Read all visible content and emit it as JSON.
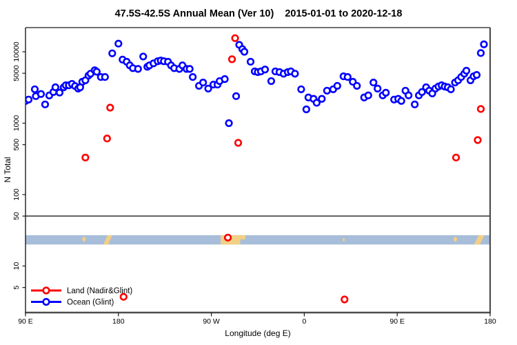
{
  "window": {
    "background": "#ffffff"
  },
  "chart_data": {
    "type": "scatter",
    "title": "47.5S-42.5S Annual Mean (Ver 10)",
    "subtitle": "2015-01-01 to 2020-12-18",
    "xlabel": "Longitude (deg E)",
    "ylabel": "N Total",
    "y_scale": "log",
    "x_range_deg": [
      90,
      540
    ],
    "y_range": [
      2.5,
      21000
    ],
    "grid": false,
    "reference_line_n": 50,
    "axis_colors": {
      "box": "#1a1a1a",
      "heavy": "#4d4d4d"
    },
    "y_ticks": [
      {
        "n": 10000,
        "label": "10000"
      },
      {
        "n": 5000,
        "label": "5000"
      },
      {
        "n": 1000,
        "label": "1000"
      },
      {
        "n": 500,
        "label": "500"
      },
      {
        "n": 100,
        "label": "100"
      },
      {
        "n": 50,
        "label": "50"
      },
      {
        "n": 10,
        "label": "10"
      },
      {
        "n": 5,
        "label": "5"
      }
    ],
    "x_ticks": [
      {
        "deg": 90,
        "label": "90 E"
      },
      {
        "deg": 180,
        "label": "180"
      },
      {
        "deg": 270,
        "label": "90 W"
      },
      {
        "deg": 360,
        "label": "0"
      },
      {
        "deg": 450,
        "label": "90 E"
      },
      {
        "deg": 540,
        "label": "180"
      }
    ],
    "legend": {
      "position": "bottom-left"
    },
    "series": [
      {
        "name": "Land (Nadir&Glint)",
        "color": "#ff0000",
        "points": [
          [
            148,
            330
          ],
          [
            169,
            610
          ],
          [
            172,
            1650
          ],
          [
            185,
            3.7
          ],
          [
            286,
            25
          ],
          [
            290,
            7850
          ],
          [
            293,
            15500
          ],
          [
            296,
            530
          ],
          [
            399,
            3.4
          ],
          [
            507,
            330
          ],
          [
            528,
            580
          ],
          [
            531,
            1580
          ]
        ]
      },
      {
        "name": "Ocean (Glint)",
        "color": "#0000ff",
        "points": [
          [
            90,
            2050
          ],
          [
            93,
            2140
          ],
          [
            99,
            2980
          ],
          [
            100,
            2390
          ],
          [
            105,
            2560
          ],
          [
            109,
            1830
          ],
          [
            113,
            2440
          ],
          [
            117,
            2730
          ],
          [
            119,
            3180
          ],
          [
            123,
            2680
          ],
          [
            127,
            3180
          ],
          [
            129,
            3390
          ],
          [
            132,
            3390
          ],
          [
            135,
            3550
          ],
          [
            138,
            3310
          ],
          [
            141,
            3050
          ],
          [
            143,
            3180
          ],
          [
            145,
            3800
          ],
          [
            148,
            3980
          ],
          [
            151,
            4640
          ],
          [
            153,
            4930
          ],
          [
            157,
            5500
          ],
          [
            159,
            5250
          ],
          [
            163,
            4430
          ],
          [
            167,
            4430
          ],
          [
            174,
            9500
          ],
          [
            180,
            13000
          ],
          [
            184,
            7760
          ],
          [
            188,
            7250
          ],
          [
            191,
            6440
          ],
          [
            194,
            5890
          ],
          [
            199,
            5750
          ],
          [
            204,
            8570
          ],
          [
            208,
            6160
          ],
          [
            210,
            6440
          ],
          [
            214,
            6880
          ],
          [
            218,
            7360
          ],
          [
            221,
            7530
          ],
          [
            224,
            7360
          ],
          [
            228,
            7250
          ],
          [
            231,
            6440
          ],
          [
            234,
            5890
          ],
          [
            239,
            5750
          ],
          [
            242,
            6440
          ],
          [
            246,
            5750
          ],
          [
            249,
            5750
          ],
          [
            252,
            4430
          ],
          [
            258,
            3330
          ],
          [
            262,
            3710
          ],
          [
            267,
            3050
          ],
          [
            272,
            3470
          ],
          [
            276,
            3470
          ],
          [
            278,
            3880
          ],
          [
            283,
            4140
          ],
          [
            287,
            1000
          ],
          [
            294,
            2390
          ],
          [
            297,
            12500
          ],
          [
            300,
            10900
          ],
          [
            302,
            10000
          ],
          [
            308,
            7250
          ],
          [
            312,
            5310
          ],
          [
            315,
            5190
          ],
          [
            318,
            5310
          ],
          [
            322,
            5640
          ],
          [
            328,
            3880
          ],
          [
            332,
            5310
          ],
          [
            336,
            5190
          ],
          [
            340,
            4930
          ],
          [
            344,
            5190
          ],
          [
            347,
            5310
          ],
          [
            351,
            4930
          ],
          [
            357,
            2980
          ],
          [
            362,
            1560
          ],
          [
            364,
            2290
          ],
          [
            369,
            2190
          ],
          [
            372,
            1930
          ],
          [
            377,
            2190
          ],
          [
            382,
            2850
          ],
          [
            388,
            2980
          ],
          [
            392,
            3330
          ],
          [
            398,
            4530
          ],
          [
            402,
            4430
          ],
          [
            407,
            3800
          ],
          [
            411,
            3330
          ],
          [
            418,
            2290
          ],
          [
            422,
            2450
          ],
          [
            427,
            3710
          ],
          [
            431,
            3050
          ],
          [
            436,
            2450
          ],
          [
            439,
            2670
          ],
          [
            447,
            2140
          ],
          [
            451,
            2190
          ],
          [
            454,
            2050
          ],
          [
            458,
            2850
          ],
          [
            461,
            2450
          ],
          [
            467,
            1830
          ],
          [
            471,
            2450
          ],
          [
            474,
            2730
          ],
          [
            478,
            3180
          ],
          [
            481,
            2850
          ],
          [
            484,
            2610
          ],
          [
            487,
            3050
          ],
          [
            490,
            3260
          ],
          [
            493,
            3390
          ],
          [
            496,
            3260
          ],
          [
            499,
            3180
          ],
          [
            502,
            2980
          ],
          [
            506,
            3710
          ],
          [
            509,
            3980
          ],
          [
            512,
            4430
          ],
          [
            515,
            4930
          ],
          [
            517,
            5430
          ],
          [
            521,
            3980
          ],
          [
            524,
            4530
          ],
          [
            527,
            4730
          ],
          [
            531,
            9600
          ],
          [
            534,
            12700
          ]
        ]
      }
    ],
    "map_band": {
      "description": "land/ocean strip for latitude band 47.5S-42.5S",
      "ocean_color": "#a7bdd9",
      "land_color": "#f2cf85",
      "n_top": 27,
      "n_bottom": 20,
      "land_segments": [
        {
          "from_deg": 145,
          "to_deg": 148.5,
          "shape": "blob"
        },
        {
          "from_deg": 165.5,
          "to_deg": 174,
          "shape": "diagonal"
        },
        {
          "from_deg": 279,
          "to_deg": 298,
          "shape": "patch"
        },
        {
          "from_deg": 298,
          "to_deg": 303,
          "shape": "tail"
        },
        {
          "from_deg": 397.5,
          "to_deg": 399,
          "shape": "dot"
        },
        {
          "from_deg": 504.5,
          "to_deg": 508,
          "shape": "blob"
        },
        {
          "from_deg": 524.5,
          "to_deg": 534.5,
          "shape": "diagonal"
        }
      ]
    }
  }
}
